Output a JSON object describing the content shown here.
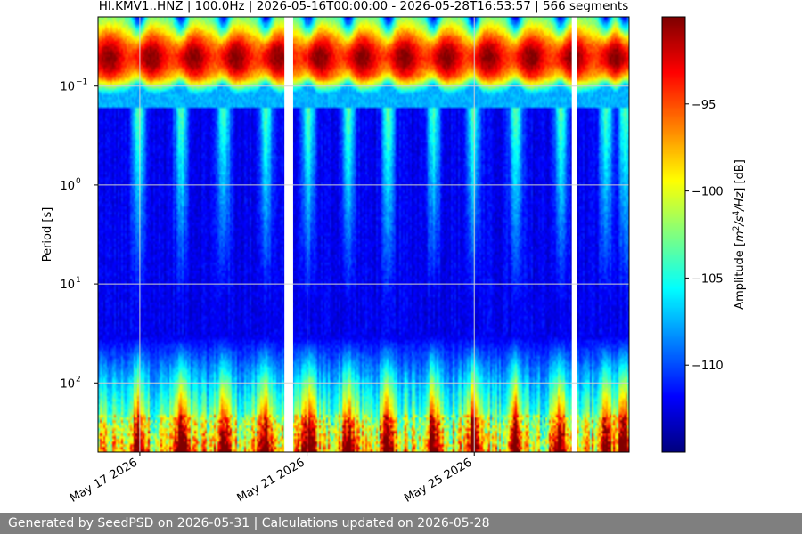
{
  "chart_data": {
    "type": "heatmap",
    "title": "HI.KMV1..HNZ | 100.0Hz | 2026-05-16T00:00:00 - 2026-05-28T16:53:57 | 566 segments",
    "ylabel": "Period [s]",
    "y_scale": "log",
    "y_inverted": true,
    "y_ticks": [
      {
        "value": 0.1,
        "base": "10",
        "exp": "−1"
      },
      {
        "value": 1,
        "base": "10",
        "exp": "0"
      },
      {
        "value": 10,
        "base": "10",
        "exp": "1"
      },
      {
        "value": 100,
        "base": "10",
        "exp": "2"
      }
    ],
    "ylim": [
      0.02,
      500
    ],
    "x_start": "2026-05-16T00:00:00",
    "x_end": "2026-05-28T16:53:57",
    "x_ticks": [
      {
        "date": "2026-05-17",
        "label": "May 17 2026"
      },
      {
        "date": "2026-05-21",
        "label": "May 21 2026"
      },
      {
        "date": "2026-05-25",
        "label": "May 25 2026"
      }
    ],
    "grid": true,
    "colormap": "jet",
    "colorbar": {
      "label_main": "Amplitude [",
      "label_unit_m": "m",
      "label_exp_2": "2",
      "label_mid": "/s",
      "label_exp_4": "4",
      "label_hz": "/Hz",
      "label_end": "] [dB]",
      "range": [
        -115,
        -90
      ],
      "ticks": [
        {
          "value": -95,
          "label": "−95"
        },
        {
          "value": -100,
          "label": "−100"
        },
        {
          "value": -105,
          "label": "−105"
        },
        {
          "value": -110,
          "label": "−110"
        }
      ]
    },
    "data_gaps": [
      {
        "start": "2026-05-20T11:00:00",
        "end": "2026-05-20T16:00:00"
      },
      {
        "start": "2026-05-27T08:00:00",
        "end": "2026-05-27T11:00:00"
      }
    ],
    "segments": 566
  },
  "footer": {
    "text": "Generated by SeedPSD on 2026-05-31 | Calculations updated on 2026-05-28"
  }
}
